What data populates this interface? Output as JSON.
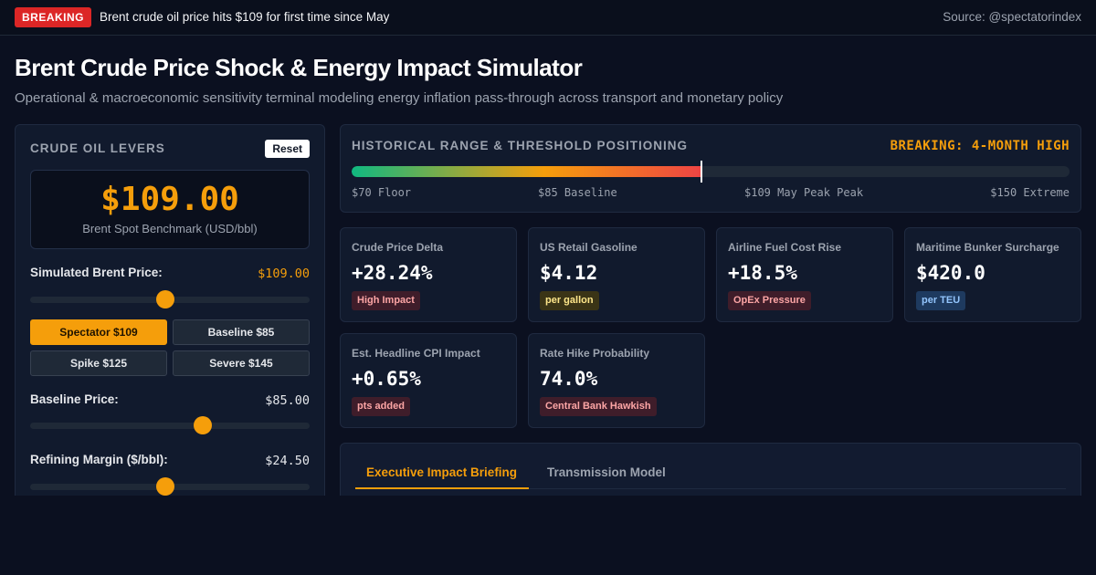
{
  "topbar": {
    "breaking_label": "BREAKING",
    "headline": "Brent crude oil price hits $109 for first time since May",
    "source": "Source: @spectatorindex"
  },
  "header": {
    "title": "Brent Crude Price Shock & Energy Impact Simulator",
    "subtitle": "Operational & macroeconomic sensitivity terminal modeling energy inflation pass-through across transport and monetary policy"
  },
  "levers": {
    "title": "CRUDE OIL LEVERS",
    "reset_label": "Reset",
    "price_display": "$109.00",
    "price_caption": "Brent Spot Benchmark (USD/bbl)",
    "simulated": {
      "label": "Simulated Brent Price:",
      "value": "$109.00",
      "slider_fraction": 0.484
    },
    "presets": [
      {
        "label": "Spectator $109",
        "active": true
      },
      {
        "label": "Baseline $85",
        "active": false
      },
      {
        "label": "Spike $125",
        "active": false
      },
      {
        "label": "Severe $145",
        "active": false
      }
    ],
    "baseline": {
      "label": "Baseline Price:",
      "value": "$85.00",
      "slider_fraction": 0.617
    },
    "margin": {
      "label": "Refining Margin ($/bbl):",
      "value": "$24.50",
      "slider_fraction": 0.483
    }
  },
  "range": {
    "title": "HISTORICAL RANGE & THRESHOLD POSITIONING",
    "alert": "BREAKING: 4-MONTH HIGH",
    "fill_fraction": 0.487,
    "ticks": [
      "$70 Floor",
      "$85 Baseline",
      "$109 May Peak Peak",
      "$150 Extreme"
    ]
  },
  "metrics": [
    {
      "label": "Crude Price Delta",
      "value": "+28.24%",
      "tag": "High Impact",
      "tag_color": "red"
    },
    {
      "label": "US Retail Gasoline",
      "value": "$4.12",
      "tag": "per gallon",
      "tag_color": "yellow"
    },
    {
      "label": "Airline Fuel Cost Rise",
      "value": "+18.5%",
      "tag": "OpEx Pressure",
      "tag_color": "red"
    },
    {
      "label": "Maritime Bunker Surcharge",
      "value": "$420.0",
      "tag": "per TEU",
      "tag_color": "blue"
    },
    {
      "label": "Est. Headline CPI Impact",
      "value": "+0.65%",
      "tag": "pts added",
      "tag_color": "red"
    },
    {
      "label": "Rate Hike Probability",
      "value": "74.0%",
      "tag": "Central Bank Hawkish",
      "tag_color": "red"
    }
  ],
  "briefing": {
    "tabs": [
      {
        "label": "Executive Impact Briefing",
        "active": true
      },
      {
        "label": "Transmission Model",
        "active": false
      }
    ]
  },
  "colors": {
    "accent": "#f59e0b",
    "breaking": "#dc2626",
    "background": "#0b1020"
  }
}
